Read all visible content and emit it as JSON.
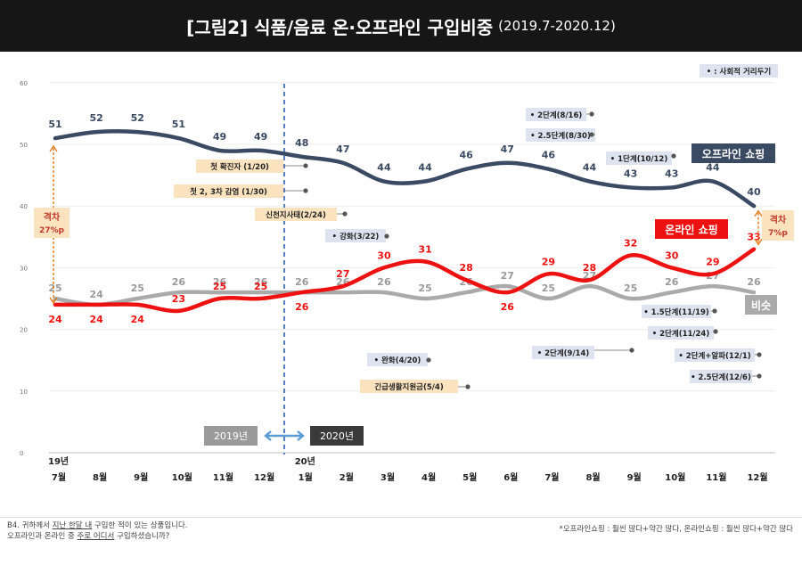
{
  "title": {
    "main": "[그림2] 식품/음료 온·오프라인 구입비중",
    "sub": "(2019.7-2020.12)"
  },
  "colors": {
    "offline": "#3b4a63",
    "online": "#ee1111",
    "similar": "#aaaaaa",
    "gap": "#e07b1a",
    "event_bg": "#dde4f0",
    "event_bg_orange": "#fbe3bf"
  },
  "chart_data": {
    "type": "line",
    "title": "[그림2] 식품/음료 온·오프라인 구입비중 (2019.7-2020.12)",
    "categories": [
      "7월",
      "8월",
      "9월",
      "10월",
      "11월",
      "12월",
      "1월",
      "2월",
      "3월",
      "4월",
      "5월",
      "6월",
      "7월",
      "8월",
      "9월",
      "10월",
      "11월",
      "12월"
    ],
    "year_labels": [
      {
        "index": 0,
        "label": "19년"
      },
      {
        "index": 6,
        "label": "20년"
      }
    ],
    "ylim": [
      0,
      60
    ],
    "yticks": [
      0,
      10,
      20,
      30,
      40,
      50,
      60
    ],
    "series": [
      {
        "key": "offline",
        "name": "오프라인 쇼핑",
        "values": [
          51,
          52,
          52,
          51,
          49,
          49,
          48,
          47,
          44,
          44,
          46,
          47,
          46,
          44,
          43,
          43,
          44,
          40
        ]
      },
      {
        "key": "online",
        "name": "온라인 쇼핑",
        "values": [
          24,
          24,
          24,
          23,
          25,
          25,
          26,
          27,
          30,
          31,
          28,
          26,
          29,
          28,
          32,
          30,
          29,
          33
        ]
      },
      {
        "key": "similar",
        "name": "비슷",
        "values": [
          25,
          24,
          25,
          26,
          26,
          26,
          26,
          26,
          26,
          25,
          26,
          27,
          25,
          27,
          25,
          26,
          27,
          26
        ]
      }
    ],
    "gaps": [
      {
        "index": 0,
        "label": "격차",
        "value": "27%p"
      },
      {
        "index": 17,
        "label": "격차",
        "value": "7%p"
      }
    ],
    "year_divider": {
      "left": "2019년",
      "right": "2020년"
    },
    "events": [
      {
        "text": "첫 확진자 (1/20)",
        "style": "orange"
      },
      {
        "text": "첫 2, 3차 감염 (1/30)",
        "style": "orange"
      },
      {
        "text": "신천지사태(2/24)",
        "style": "orange"
      },
      {
        "text": "강화(3/22)",
        "style": "blue",
        "bullet": true
      },
      {
        "text": "완화(4/20)",
        "style": "blue",
        "bullet": true
      },
      {
        "text": "긴급생활지원금(5/4)",
        "style": "orange"
      },
      {
        "text": "2단계(8/16)",
        "style": "blue",
        "bullet": true
      },
      {
        "text": "2.5단계(8/30)",
        "style": "blue",
        "bullet": true
      },
      {
        "text": "1단계(10/12)",
        "style": "blue",
        "bullet": true
      },
      {
        "text": "2단계(9/14)",
        "style": "blue",
        "bullet": true
      },
      {
        "text": "1.5단계(11/19)",
        "style": "blue",
        "bullet": true
      },
      {
        "text": "2단계(11/24)",
        "style": "blue",
        "bullet": true
      },
      {
        "text": "2단계+알파(12/1)",
        "style": "blue",
        "bullet": true
      },
      {
        "text": "2.5단계(12/6)",
        "style": "blue",
        "bullet": true
      }
    ],
    "legend_note": ": 사회적 거리두기"
  },
  "footer": {
    "left_line1_prefix": "B4. 귀하께서 ",
    "left_line1_u": "지난 한달 내",
    "left_line1_suffix": " 구입한 적이 있는 상품입니다.",
    "left_line2_prefix": "오프라인과 온라인 중 ",
    "left_line2_u": "주로 어디서",
    "left_line2_suffix": " 구입하셨습니까?",
    "right": "*오프라인쇼핑 : 훨씬 많다+약간 많다, 온라인쇼핑 : 훨씬 많다+약간 많다"
  }
}
